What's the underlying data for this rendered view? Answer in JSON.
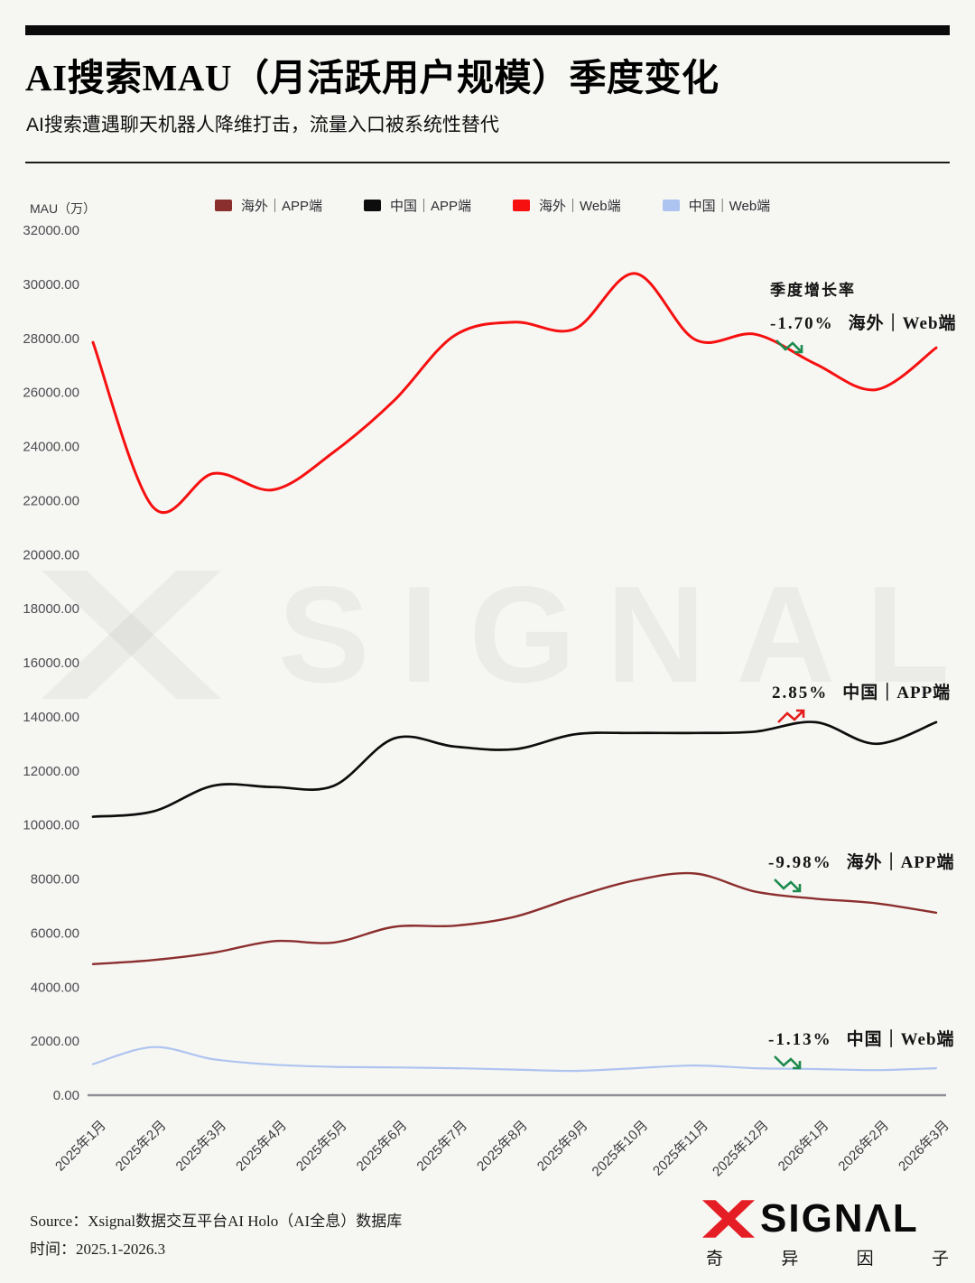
{
  "header": {
    "title": "AI搜索MAU（月活跃用户规模）季度变化",
    "subtitle": "AI搜索遭遇聊天机器人降维打击，流量入口被系统性替代"
  },
  "chart": {
    "ylabel": "MAU（万）"
  },
  "chart_data": {
    "type": "line",
    "categories": [
      "2025年1月",
      "2025年2月",
      "2025年3月",
      "2025年4月",
      "2025年5月",
      "2025年6月",
      "2025年7月",
      "2025年8月",
      "2025年9月",
      "2025年10月",
      "2025年11月",
      "2025年12月",
      "2026年1月",
      "2026年2月",
      "2026年3月"
    ],
    "series": [
      {
        "name": "海外｜APP端",
        "color": "#8b2f2e",
        "values": [
          4850,
          5000,
          5270,
          5700,
          5650,
          6230,
          6270,
          6600,
          7330,
          7950,
          8200,
          7530,
          7270,
          7100,
          6750
        ]
      },
      {
        "name": "中国｜APP端",
        "color": "#0d0d0d",
        "values": [
          10300,
          10500,
          11450,
          11400,
          11450,
          13200,
          12900,
          12800,
          13350,
          13400,
          13400,
          13450,
          13800,
          13000,
          13800
        ]
      },
      {
        "name": "海外｜Web端",
        "color": "#f61010",
        "values": [
          27850,
          21750,
          23000,
          22400,
          23800,
          25700,
          28100,
          28600,
          28350,
          30400,
          27950,
          28150,
          27050,
          26100,
          27650
        ]
      },
      {
        "name": "中国｜Web端",
        "color": "#aec4f0",
        "values": [
          1150,
          1780,
          1330,
          1130,
          1050,
          1030,
          1000,
          950,
          900,
          1000,
          1100,
          1000,
          970,
          930,
          1000
        ]
      }
    ],
    "ylim": [
      0,
      32000
    ],
    "ytick_step": 2000,
    "ytick_decimals": 2,
    "grid": false,
    "legend_position": "top",
    "annotations": [
      {
        "title": "季度增长率",
        "value": "-1.70%",
        "series": "海外｜Web端",
        "direction": "down"
      },
      {
        "value": "2.85%",
        "series": "中国｜APP端",
        "direction": "up"
      },
      {
        "value": "-9.98%",
        "series": "海外｜APP端",
        "direction": "down"
      },
      {
        "value": "-1.13%",
        "series": "中国｜Web端",
        "direction": "down"
      }
    ]
  },
  "colors": {
    "up_arrow": "#e31b1b",
    "down_arrow": "#1d8a4e",
    "logo_red": "#e51e25"
  },
  "watermark": "SIGNAL",
  "footer": {
    "source": "Source：Xsignal数据交互平台AI Holo（AI全息）数据库",
    "time": "时间：2025.1-2026.3",
    "logo_brand": "SIGNΛL",
    "logo_sub": "奇异因子"
  }
}
